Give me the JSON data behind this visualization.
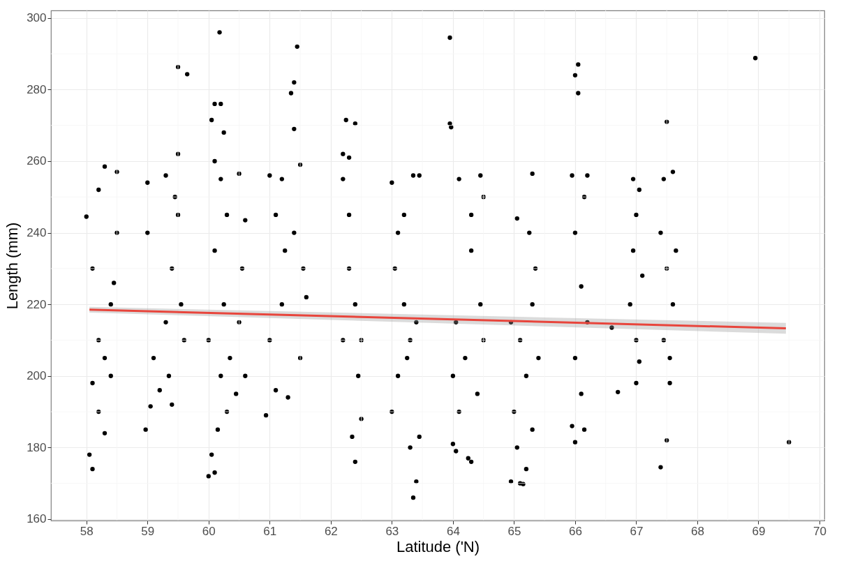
{
  "chart_data": {
    "type": "scatter",
    "xlabel": "Latitude ('N)",
    "ylabel": "Length (mm)",
    "xlim": [
      57.42,
      70.08
    ],
    "ylim": [
      159.6,
      302.1
    ],
    "xticks": [
      58,
      59,
      60,
      61,
      62,
      63,
      64,
      65,
      66,
      67,
      68,
      69,
      70
    ],
    "yticks": [
      160,
      180,
      200,
      220,
      240,
      260,
      280,
      300
    ],
    "grid": true,
    "series": [
      {
        "color": "#000000",
        "marker": "circle",
        "x": [
          58.0,
          58.05,
          58.1,
          58.3,
          58.2,
          58.5,
          58.2,
          58.3,
          58.4,
          58.2,
          58.4,
          58.1,
          58.5,
          58.3,
          58.1,
          58.45,
          58.97,
          59.05,
          59.5,
          59.65,
          59.5,
          59.3,
          59.0,
          59.4,
          59.2,
          59.3,
          59.4,
          59.5,
          59.1,
          59.55,
          59.6,
          59.0,
          59.35,
          59.45,
          60.18,
          60.1,
          60.2,
          60.05,
          60.25,
          60.1,
          60.0,
          60.1,
          60.05,
          60.15,
          60.3,
          60.2,
          60.0,
          60.25,
          60.1,
          60.3,
          60.2,
          60.5,
          60.6,
          60.55,
          60.5,
          60.6,
          60.45,
          60.35,
          60.94,
          61.45,
          61.4,
          61.35,
          61.4,
          61.5,
          61.0,
          61.2,
          61.55,
          61.6,
          61.3,
          61.1,
          61.0,
          61.2,
          61.4,
          61.1,
          61.5,
          61.25,
          62.25,
          62.4,
          62.2,
          62.3,
          62.2,
          62.4,
          62.35,
          62.5,
          62.2,
          62.3,
          62.4,
          62.45,
          62.3,
          62.5,
          63.35,
          63.4,
          63.3,
          63.45,
          63.0,
          63.1,
          63.3,
          63.2,
          63.05,
          63.2,
          63.0,
          63.35,
          63.45,
          63.25,
          63.4,
          63.1,
          63.95,
          63.95,
          63.97,
          64.05,
          64.3,
          64.25,
          64.0,
          64.1,
          64.0,
          64.2,
          64.4,
          64.5,
          64.45,
          64.3,
          64.1,
          64.45,
          64.5,
          64.3,
          64.05,
          65.1,
          65.15,
          64.95,
          65.2,
          65.05,
          65.3,
          65.0,
          65.2,
          65.4,
          65.1,
          64.95,
          65.3,
          65.35,
          65.05,
          65.3,
          65.25,
          66.05,
          66.0,
          66.05,
          66.0,
          65.95,
          66.15,
          66.1,
          66.0,
          66.2,
          66.1,
          66.0,
          66.2,
          65.95,
          66.15,
          66.6,
          66.7,
          66.95,
          67.05,
          67.0,
          66.95,
          67.1,
          66.9,
          67.0,
          67.05,
          67.0,
          67.4,
          67.5,
          67.55,
          67.5,
          67.45,
          67.6,
          67.4,
          67.5,
          67.6,
          67.45,
          67.55,
          67.65,
          68.95,
          69.5
        ],
        "values": [
          244.5,
          178,
          174,
          258.5,
          252,
          257,
          190,
          184,
          200,
          210,
          220,
          230,
          240,
          205,
          198,
          226,
          185,
          191.5,
          286.3,
          284.3,
          262,
          256,
          254,
          192,
          196,
          215,
          230,
          245,
          205,
          220,
          210,
          240,
          200,
          250,
          296,
          276,
          276,
          271.5,
          268,
          260,
          172,
          173,
          178,
          185,
          190,
          200,
          210,
          220,
          235,
          245,
          255,
          256.5,
          243.5,
          230,
          215,
          200,
          195,
          205,
          189,
          292,
          282,
          279,
          269,
          259,
          256,
          255,
          230,
          222,
          194,
          196,
          210,
          220,
          240,
          245,
          205,
          235,
          271.5,
          270.5,
          262,
          261,
          255,
          176,
          183,
          188,
          210,
          230,
          220,
          200,
          245,
          210,
          166,
          170.5,
          180,
          183,
          190,
          200,
          210,
          220,
          230,
          245,
          254,
          256,
          256,
          205,
          215,
          240,
          294.5,
          270.5,
          269.5,
          179,
          176,
          177,
          181,
          190,
          200,
          205,
          195,
          210,
          220,
          235,
          255,
          256,
          250,
          245,
          215,
          170,
          169.8,
          170.5,
          174,
          180,
          185,
          190,
          200,
          205,
          210,
          215,
          220,
          230,
          244,
          256.5,
          240,
          287,
          284,
          279,
          181.5,
          186,
          185,
          195,
          205,
          215,
          225,
          240,
          256,
          256,
          250,
          213.5,
          195.5,
          255,
          252,
          245,
          235,
          228,
          220,
          210,
          204,
          198,
          174.5,
          182,
          198,
          271,
          255,
          257,
          240,
          230,
          220,
          210,
          205,
          235,
          288.8,
          181.5
        ]
      },
      {
        "type": "line",
        "color": "#e8453c",
        "x": [
          58.05,
          69.45
        ],
        "values": [
          218.5,
          213.3
        ],
        "lower": [
          217.7,
          211.8
        ],
        "upper": [
          219.3,
          214.8
        ]
      }
    ]
  }
}
